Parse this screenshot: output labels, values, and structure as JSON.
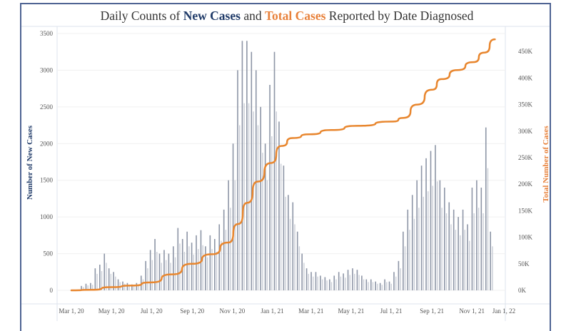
{
  "title": {
    "prefix": "Daily Counts of ",
    "new_cases": "New Cases",
    "middle": " and ",
    "total_cases": "Total Cases",
    "suffix": " Reported by Date Diagnosed"
  },
  "colors": {
    "frame": "#4f6493",
    "bars": "#8d95a6",
    "line": "#e8862e",
    "new_cases_text": "#1f3a68",
    "total_cases_text": "#e8813a"
  },
  "chart_data": {
    "type": "bar+line",
    "title": "Daily Counts of New Cases and Total Cases Reported by Date Diagnosed",
    "ylabel": "Number of New Cases",
    "y2label": "Total Number of Cases",
    "ylim": [
      0,
      3500
    ],
    "y2lim": [
      0,
      475000
    ],
    "yticks": [
      "0",
      "500",
      "1000",
      "1500",
      "2000",
      "2500",
      "3000",
      "3500"
    ],
    "y2ticks": [
      "0K",
      "50K",
      "100K",
      "150K",
      "200K",
      "250K",
      "300K",
      "350K",
      "400K",
      "450K"
    ],
    "xticks": [
      "Mar 1, 20",
      "May 1, 20",
      "Jul 1, 20",
      "Sep 1, 20",
      "Nov 1, 20",
      "Jan 1, 21",
      "Mar 1, 21",
      "May 1, 21",
      "Jul 1, 21",
      "Sep 1, 21",
      "Nov 1, 21",
      "Jan 1, 22"
    ],
    "xtick_dates": [
      "2020-03-01",
      "2020-05-01",
      "2020-07-01",
      "2020-09-01",
      "2020-11-01",
      "2021-01-01",
      "2021-03-01",
      "2021-05-01",
      "2021-07-01",
      "2021-09-01",
      "2021-11-01",
      "2022-01-01"
    ],
    "grid": true,
    "new_cases": {
      "weeks_from": "2020-03-01",
      "values": [
        0,
        10,
        60,
        90,
        100,
        300,
        350,
        500,
        300,
        250,
        150,
        120,
        100,
        80,
        100,
        200,
        400,
        550,
        700,
        500,
        550,
        500,
        600,
        850,
        700,
        800,
        650,
        750,
        820,
        600,
        750,
        700,
        900,
        1100,
        1500,
        2000,
        3000,
        3400,
        3400,
        3250,
        3000,
        2500,
        2000,
        2800,
        3250,
        2300,
        1700,
        1300,
        1200,
        800,
        500,
        300,
        250,
        250,
        200,
        180,
        150,
        200,
        250,
        230,
        280,
        300,
        280,
        200,
        150,
        150,
        120,
        100,
        150,
        120,
        250,
        400,
        800,
        1100,
        1300,
        1500,
        1700,
        1800,
        1900,
        1980,
        1500,
        1400,
        1200,
        1100,
        1000,
        1100,
        900,
        1400,
        1500,
        1400,
        2220,
        800
      ]
    },
    "total_cases": {
      "points": [
        [
          "2020-03-01",
          0
        ],
        [
          "2020-04-01",
          1000
        ],
        [
          "2020-05-01",
          6000
        ],
        [
          "2020-06-01",
          9000
        ],
        [
          "2020-07-01",
          15000
        ],
        [
          "2020-08-01",
          30000
        ],
        [
          "2020-09-01",
          50000
        ],
        [
          "2020-10-01",
          68000
        ],
        [
          "2020-10-26",
          90000
        ],
        [
          "2020-11-10",
          125000
        ],
        [
          "2020-11-24",
          165000
        ],
        [
          "2020-12-10",
          205000
        ],
        [
          "2020-12-30",
          240000
        ],
        [
          "2021-01-15",
          272000
        ],
        [
          "2021-02-01",
          287000
        ],
        [
          "2021-02-27",
          294000
        ],
        [
          "2021-04-01",
          302000
        ],
        [
          "2021-05-11",
          310000
        ],
        [
          "2021-07-04",
          318000
        ],
        [
          "2021-07-20",
          325000
        ],
        [
          "2021-08-10",
          350000
        ],
        [
          "2021-09-01",
          378000
        ],
        [
          "2021-09-16",
          398000
        ],
        [
          "2021-10-10",
          415000
        ],
        [
          "2021-11-03",
          430000
        ],
        [
          "2021-11-20",
          448000
        ],
        [
          "2021-12-06",
          473000
        ]
      ]
    }
  }
}
